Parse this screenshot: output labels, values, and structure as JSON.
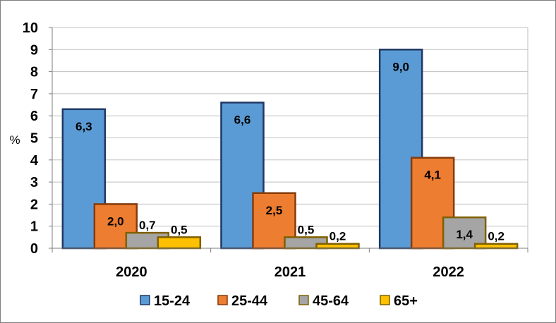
{
  "chart_data": {
    "type": "bar",
    "title": "",
    "xlabel": "",
    "ylabel": "%",
    "ylim": [
      0,
      10
    ],
    "yticks": [
      "0",
      "1",
      "2",
      "3",
      "4",
      "5",
      "6",
      "7",
      "8",
      "9",
      "10"
    ],
    "grid": true,
    "legend_position": "bottom",
    "categories": [
      "2020",
      "2021",
      "2022"
    ],
    "series": [
      {
        "name": "15-24",
        "values": [
          6.3,
          6.6,
          9.0
        ],
        "labels": [
          "6,3",
          "6,6",
          "9,0"
        ],
        "color": "#5b9bd5",
        "border": "#1f3864"
      },
      {
        "name": "25-44",
        "values": [
          2.0,
          2.5,
          4.1
        ],
        "labels": [
          "2,0",
          "2,5",
          "4,1"
        ],
        "color": "#ed7d31",
        "border": "#843c0c"
      },
      {
        "name": "45-64",
        "values": [
          0.7,
          0.5,
          1.4
        ],
        "labels": [
          "0,7",
          "0,5",
          "1,4"
        ],
        "color": "#a5a5a5",
        "border": "#7f6000"
      },
      {
        "name": "65+",
        "values": [
          0.5,
          0.2,
          0.2
        ],
        "labels": [
          "0,5",
          "0,2",
          "0,2"
        ],
        "color": "#ffc000",
        "border": "#7f6000"
      }
    ]
  }
}
